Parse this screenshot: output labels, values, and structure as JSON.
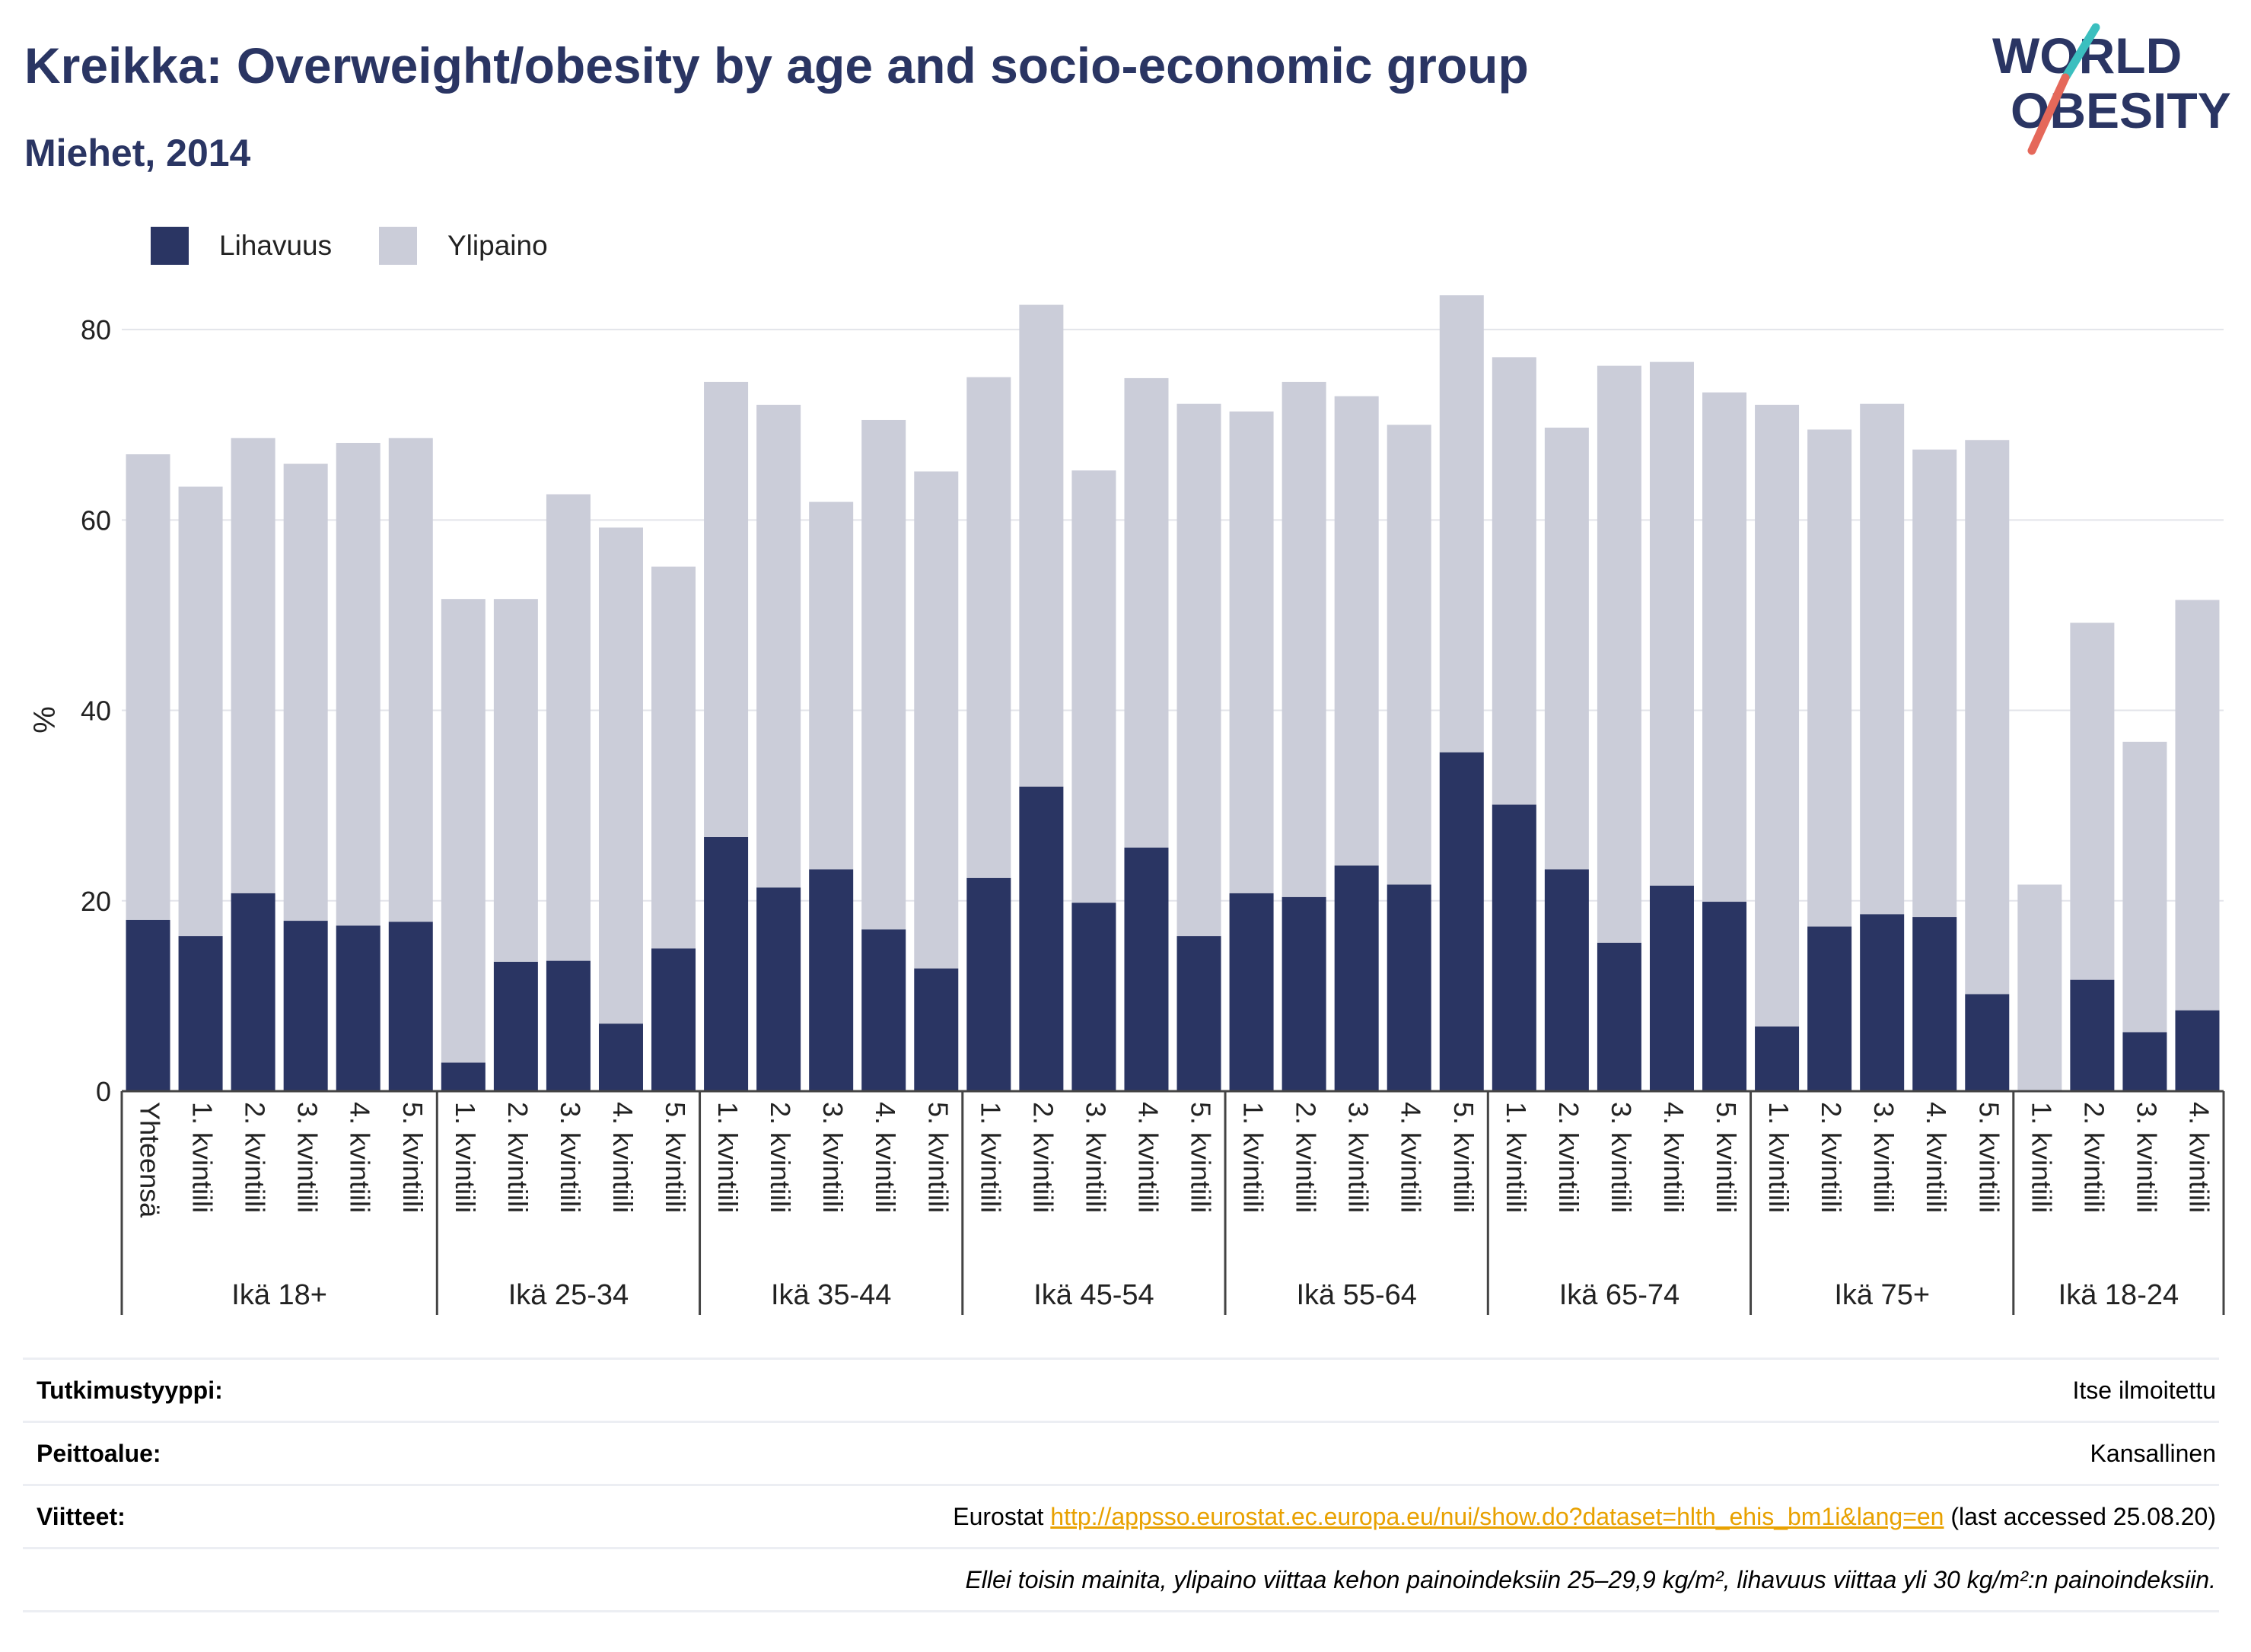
{
  "header": {
    "title": "Kreikka: Overweight/obesity by age and socio-economic group",
    "subtitle": "Miehet, 2014"
  },
  "logo": {
    "line1": "WORLD",
    "line2": "OBESITY",
    "colors": {
      "text": "#2a3563",
      "slash_teal": "#3bbfbf",
      "slash_red": "#e5685a"
    }
  },
  "legend": [
    {
      "label": "Lihavuus",
      "color": "#2a3563"
    },
    {
      "label": "Ylipaino",
      "color": "#cbcdd9"
    }
  ],
  "chart_data": {
    "type": "bar",
    "stacked": true,
    "ylabel": "%",
    "ylim": [
      0,
      90
    ],
    "yticks": [
      0,
      20,
      40,
      60,
      80
    ],
    "grid": true,
    "legend_position": "top-left",
    "groups": [
      {
        "label": "Ikä 18+",
        "categories": [
          "Yhteensä",
          "1. kvintiili",
          "2. kvintiili",
          "3. kvintiili",
          "4. kvintiili",
          "5. kvintiili"
        ]
      },
      {
        "label": "Ikä 25-34",
        "categories": [
          "1. kvintiili",
          "2. kvintiili",
          "3. kvintiili",
          "4. kvintiili",
          "5. kvintiili"
        ]
      },
      {
        "label": "Ikä 35-44",
        "categories": [
          "1. kvintiili",
          "2. kvintiili",
          "3. kvintiili",
          "4. kvintiili",
          "5. kvintiili"
        ]
      },
      {
        "label": "Ikä 45-54",
        "categories": [
          "1. kvintiili",
          "2. kvintiili",
          "3. kvintiili",
          "4. kvintiili",
          "5. kvintiili"
        ]
      },
      {
        "label": "Ikä 55-64",
        "categories": [
          "1. kvintiili",
          "2. kvintiili",
          "3. kvintiili",
          "4. kvintiili",
          "5. kvintiili"
        ]
      },
      {
        "label": "Ikä 65-74",
        "categories": [
          "1. kvintiili",
          "2. kvintiili",
          "3. kvintiili",
          "4. kvintiili",
          "5. kvintiili"
        ]
      },
      {
        "label": "Ikä 75+",
        "categories": [
          "1. kvintiili",
          "2. kvintiili",
          "3. kvintiili",
          "4. kvintiili",
          "5. kvintiili"
        ]
      },
      {
        "label": "Ikä 18-24",
        "categories": [
          "1. kvintiili",
          "2. kvintiili",
          "3. kvintiili",
          "4. kvintiili"
        ]
      }
    ],
    "series": [
      {
        "name": "Lihavuus",
        "color": "#2a3563",
        "values": [
          18.0,
          16.3,
          20.8,
          17.9,
          17.4,
          17.8,
          3.0,
          13.6,
          13.7,
          7.1,
          15.0,
          26.7,
          21.4,
          23.3,
          17.0,
          12.9,
          22.4,
          32.0,
          19.8,
          25.6,
          16.3,
          20.8,
          20.4,
          23.7,
          21.7,
          35.6,
          30.1,
          23.3,
          15.6,
          21.6,
          19.9,
          6.8,
          17.3,
          18.6,
          18.3,
          10.2,
          0.0,
          11.7,
          6.2,
          8.5
        ]
      },
      {
        "name": "Ylipaino",
        "color": "#cbcdd9",
        "values": [
          48.9,
          47.2,
          47.8,
          48.0,
          50.7,
          50.8,
          48.7,
          38.1,
          49.0,
          52.1,
          40.1,
          47.8,
          50.7,
          38.6,
          53.5,
          52.2,
          52.6,
          50.6,
          45.4,
          49.3,
          55.9,
          50.6,
          54.1,
          49.3,
          48.3,
          48.0,
          47.0,
          46.4,
          60.6,
          55.0,
          53.5,
          65.3,
          52.2,
          53.6,
          49.1,
          58.2,
          21.7,
          37.5,
          30.5,
          43.1
        ]
      }
    ]
  },
  "info": {
    "study_type_label": "Tutkimustyyppi:",
    "study_type_value": "Itse ilmoitettu",
    "coverage_label": "Peittoalue:",
    "coverage_value": "Kansallinen",
    "references_label": "Viitteet:",
    "reference_prefix": "Eurostat ",
    "reference_link": "http://appsso.eurostat.ec.europa.eu/nui/show.do?dataset=hlth_ehis_bm1i&lang=en",
    "reference_suffix": " (last accessed 25.08.20)",
    "note": "Ellei toisin mainita, ylipaino viittaa kehon painoindeksiin 25–29,9 kg/m², lihavuus viittaa yli 30 kg/m²:n painoindeksiin."
  }
}
